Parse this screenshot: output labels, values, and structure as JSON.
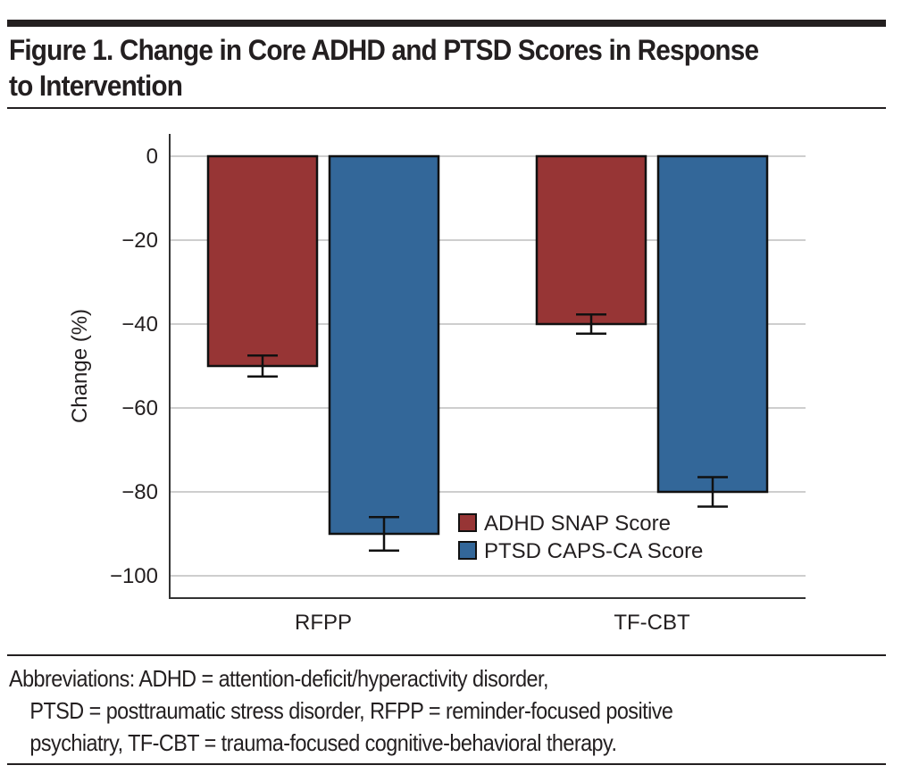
{
  "figure": {
    "title_line1": "Figure 1. Change in Core ADHD and PTSD Scores in Response",
    "title_line2": "to Intervention",
    "caption_line1": "Abbreviations: ADHD = attention-deficit/hyperactivity disorder,",
    "caption_line2": "PTSD = posttraumatic stress disorder, RFPP = reminder-focused positive",
    "caption_line3": "psychiatry, TF-CBT = trauma-focused cognitive-behavioral therapy."
  },
  "chart_data": {
    "type": "bar",
    "title": "Figure 1. Change in Core ADHD and PTSD Scores in Response to Intervention",
    "xlabel": "",
    "ylabel": "Change (%)",
    "categories": [
      "RFPP",
      "TF-CBT"
    ],
    "series": [
      {
        "name": "ADHD SNAP Score",
        "color": "#973535",
        "values": [
          -50,
          -40
        ],
        "errors": [
          2.5,
          2.3
        ]
      },
      {
        "name": "PTSD CAPS-CA Score",
        "color": "#336799",
        "values": [
          -90,
          -80
        ],
        "errors": [
          4,
          3.5
        ]
      }
    ],
    "ylim": [
      -105,
      5
    ],
    "yticks": [
      0,
      -20,
      -40,
      -60,
      -80,
      -100
    ],
    "ytick_labels": [
      "0",
      "−20",
      "−40",
      "−60",
      "−80",
      "−100"
    ],
    "grid": true,
    "legend_position": "lower-center"
  }
}
